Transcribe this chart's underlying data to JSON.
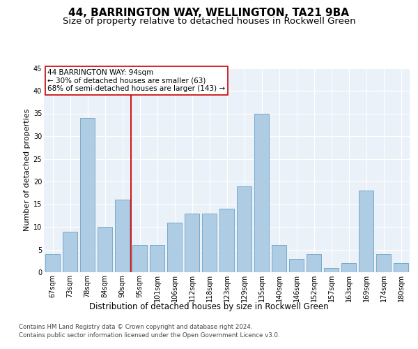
{
  "title": "44, BARRINGTON WAY, WELLINGTON, TA21 9BA",
  "subtitle": "Size of property relative to detached houses in Rockwell Green",
  "xlabel": "Distribution of detached houses by size in Rockwell Green",
  "ylabel": "Number of detached properties",
  "categories": [
    "67sqm",
    "73sqm",
    "78sqm",
    "84sqm",
    "90sqm",
    "95sqm",
    "101sqm",
    "106sqm",
    "112sqm",
    "118sqm",
    "123sqm",
    "129sqm",
    "135sqm",
    "140sqm",
    "146sqm",
    "152sqm",
    "157sqm",
    "163sqm",
    "169sqm",
    "174sqm",
    "180sqm"
  ],
  "values": [
    4,
    9,
    34,
    10,
    16,
    6,
    6,
    11,
    13,
    13,
    14,
    19,
    35,
    6,
    3,
    4,
    1,
    2,
    18,
    4,
    2
  ],
  "bar_color": "#AECCE4",
  "bar_edgecolor": "#7AAAC8",
  "bar_linewidth": 0.7,
  "highlight_color": "#CC0000",
  "annotation_text": "44 BARRINGTON WAY: 94sqm\n← 30% of detached houses are smaller (63)\n68% of semi-detached houses are larger (143) →",
  "annotation_box_edgecolor": "#CC0000",
  "annotation_box_facecolor": "#FFFFFF",
  "ylim": [
    0,
    45
  ],
  "yticks": [
    0,
    5,
    10,
    15,
    20,
    25,
    30,
    35,
    40,
    45
  ],
  "footer1": "Contains HM Land Registry data © Crown copyright and database right 2024.",
  "footer2": "Contains public sector information licensed under the Open Government Licence v3.0.",
  "title_fontsize": 11,
  "subtitle_fontsize": 9.5,
  "tick_fontsize": 7,
  "ylabel_fontsize": 8,
  "xlabel_fontsize": 8.5,
  "annotation_fontsize": 7.5,
  "bg_color": "#EAF1F8",
  "fig_bg_color": "#FFFFFF"
}
